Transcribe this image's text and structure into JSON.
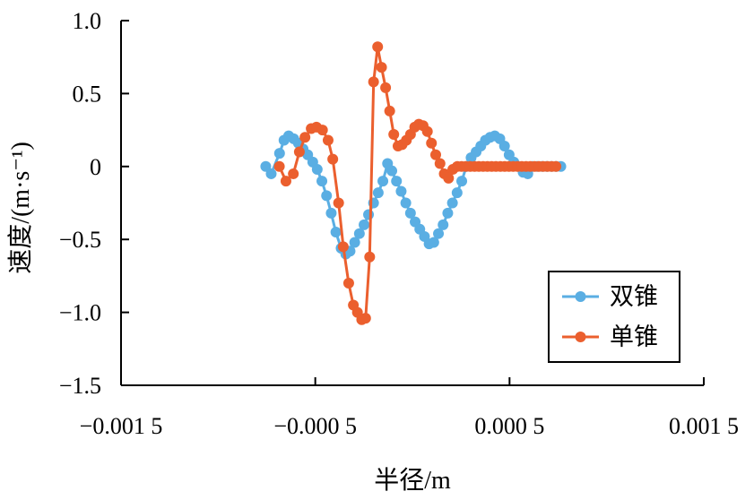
{
  "chart_data": {
    "type": "line",
    "xlabel": "半径/m",
    "ylabel": "速度/(m·s⁻¹)",
    "xlim": [
      -0.0015,
      0.0015
    ],
    "ylim": [
      -1.5,
      1.0
    ],
    "x_ticks": [
      -0.0015,
      -0.0005,
      0.0005,
      0.0015
    ],
    "x_tick_labels": [
      "−0.001 5",
      "−0.000 5",
      "0.000 5",
      "0.001 5"
    ],
    "y_ticks": [
      -1.5,
      -1.0,
      -0.5,
      0,
      0.5,
      1.0
    ],
    "y_tick_labels": [
      "−1.5",
      "−1.0",
      "−0.5",
      "0",
      "0.5",
      "1.0"
    ],
    "grid": false,
    "legend_position": "bottom-right",
    "series": [
      {
        "name": "双锥",
        "color": "#5aaee3",
        "x": [
          -0.000755,
          -0.000727,
          -0.000684,
          -0.000661,
          -0.000637,
          -0.000611,
          -0.000587,
          -0.000563,
          -0.000539,
          -0.000513,
          -0.00049,
          -0.000466,
          -0.000442,
          -0.000418,
          -0.000394,
          -0.000367,
          -0.000343,
          -0.000321,
          -0.000297,
          -0.000273,
          -0.000249,
          -0.000226,
          -0.0002,
          -0.000176,
          -0.000152,
          -0.000128,
          -0.000106,
          -8.2e-05,
          -5.8e-05,
          -3.4e-05,
          -1e-05,
          1.4e-05,
          3.8e-05,
          6.2e-05,
          8.6e-05,
          0.00011,
          0.000134,
          0.000158,
          0.000182,
          0.000206,
          0.00023,
          0.000254,
          0.000278,
          0.000302,
          0.000328,
          0.000352,
          0.000376,
          0.0004,
          0.000424,
          0.00045,
          0.000474,
          0.000498,
          0.000522,
          0.000546,
          0.00057,
          0.000594,
          0.000618,
          0.000642,
          0.000668,
          0.000692,
          0.000716,
          0.00074,
          0.000764
        ],
        "y": [
          0.0,
          -0.05,
          0.09,
          0.18,
          0.21,
          0.19,
          0.16,
          0.12,
          0.08,
          0.03,
          -0.02,
          -0.1,
          -0.2,
          -0.32,
          -0.45,
          -0.56,
          -0.6,
          -0.58,
          -0.52,
          -0.46,
          -0.4,
          -0.33,
          -0.25,
          -0.18,
          -0.1,
          0.02,
          -0.03,
          -0.1,
          -0.17,
          -0.25,
          -0.32,
          -0.38,
          -0.43,
          -0.48,
          -0.53,
          -0.52,
          -0.46,
          -0.4,
          -0.32,
          -0.25,
          -0.18,
          -0.1,
          0.0,
          0.06,
          0.1,
          0.14,
          0.18,
          0.2,
          0.21,
          0.19,
          0.14,
          0.08,
          0.03,
          0.0,
          -0.04,
          -0.05,
          0.0,
          0.0,
          0.0,
          0.0,
          0.0,
          0.0,
          0.0
        ]
      },
      {
        "name": "单锥",
        "color": "#eb5f2e",
        "x": [
          -0.000685,
          -0.000651,
          -0.000613,
          -0.000582,
          -0.000553,
          -0.000521,
          -0.000494,
          -0.000463,
          -0.000434,
          -0.00041,
          -0.00038,
          -0.000356,
          -0.000328,
          -0.000304,
          -0.000283,
          -0.000261,
          -0.000241,
          -0.00022,
          -0.0002,
          -0.000179,
          -0.000159,
          -0.000138,
          -0.000117,
          -9.6e-05,
          -7.4e-05,
          -5.3e-05,
          -3.1e-05,
          -1e-05,
          1.2e-05,
          3.3e-05,
          5.5e-05,
          7.7e-05,
          9.8e-05,
          0.00012,
          0.000142,
          0.000164,
          0.000186,
          0.000208,
          0.000231,
          0.000253,
          0.000275,
          0.000298,
          0.00032,
          0.000342,
          0.000364,
          0.000386,
          0.000408,
          0.00043,
          0.000453,
          0.000475,
          0.000497,
          0.000519,
          0.000541,
          0.000563,
          0.000585,
          0.000607,
          0.000629,
          0.000651,
          0.000673,
          0.000695,
          0.000717,
          0.000739
        ],
        "y": [
          0.0,
          -0.1,
          -0.05,
          0.1,
          0.2,
          0.26,
          0.27,
          0.25,
          0.18,
          0.05,
          -0.25,
          -0.55,
          -0.8,
          -0.95,
          -1.0,
          -1.05,
          -1.04,
          -0.62,
          0.58,
          0.82,
          0.68,
          0.54,
          0.38,
          0.22,
          0.14,
          0.15,
          0.18,
          0.22,
          0.27,
          0.29,
          0.28,
          0.24,
          0.16,
          0.08,
          0.02,
          -0.05,
          -0.08,
          -0.02,
          0.0,
          0.0,
          0.0,
          0.0,
          0.0,
          0.0,
          0.0,
          0.0,
          0.0,
          0.0,
          0.0,
          0.0,
          0.0,
          0.0,
          0.0,
          0.0,
          0.0,
          0.0,
          0.0,
          0.0,
          0.0,
          0.0,
          0.0,
          0.0
        ]
      }
    ]
  }
}
